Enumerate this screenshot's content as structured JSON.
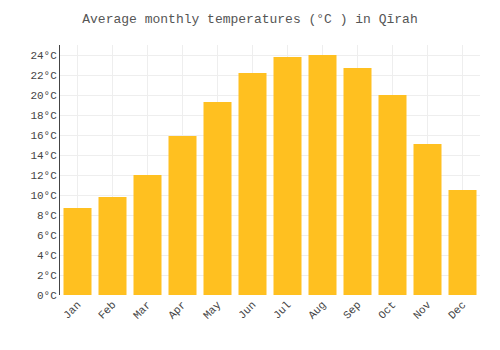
{
  "chart_data": {
    "type": "bar",
    "title": "Average monthly temperatures (°C ) in Qīrah",
    "categories": [
      "Jan",
      "Feb",
      "Mar",
      "Apr",
      "May",
      "Jun",
      "Jul",
      "Aug",
      "Sep",
      "Oct",
      "Nov",
      "Dec"
    ],
    "values": [
      8.7,
      9.8,
      12.0,
      15.9,
      19.3,
      22.2,
      23.8,
      24.0,
      22.7,
      20.0,
      15.1,
      10.5
    ],
    "color": "#FFC020",
    "ylim": [
      0,
      25
    ],
    "yticks": [
      {
        "value": 0,
        "label": "0°C"
      },
      {
        "value": 2,
        "label": "2°C"
      },
      {
        "value": 4,
        "label": "4°C"
      },
      {
        "value": 6,
        "label": "6°C"
      },
      {
        "value": 8,
        "label": "8°C"
      },
      {
        "value": 10,
        "label": "10°C"
      },
      {
        "value": 12,
        "label": "12°C"
      },
      {
        "value": 14,
        "label": "14°C"
      },
      {
        "value": 16,
        "label": "16°C"
      },
      {
        "value": 18,
        "label": "18°C"
      },
      {
        "value": 20,
        "label": "20°C"
      },
      {
        "value": 22,
        "label": "22°C"
      },
      {
        "value": 24,
        "label": "24°C"
      }
    ],
    "grid": true
  }
}
